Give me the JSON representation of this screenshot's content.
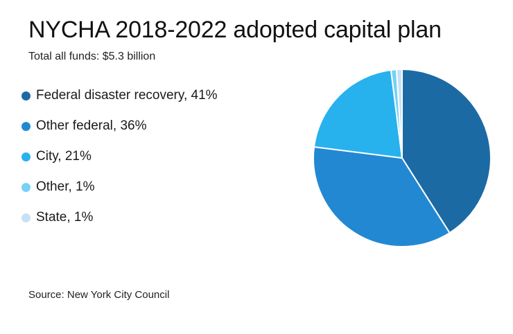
{
  "chart_data": {
    "type": "pie",
    "title": "NYCHA 2018-2022 adopted capital plan",
    "subtitle": "Total all funds: $5.3 billion",
    "source": "Source: New York City Council",
    "legend_position": "left",
    "slices": [
      {
        "name": "Federal disaster recovery",
        "label": "Federal disaster recovery, 41%",
        "value": 41,
        "color": "#1c6aa4"
      },
      {
        "name": "Other federal",
        "label": "Other federal, 36%",
        "value": 36,
        "color": "#2388d2"
      },
      {
        "name": "City",
        "label": "City, 21%",
        "value": 21,
        "color": "#27b2ee"
      },
      {
        "name": "Other",
        "label": "Other, 1%",
        "value": 1,
        "color": "#74d2f6"
      },
      {
        "name": "State",
        "label": "State, 1%",
        "value": 1,
        "color": "#c6e1f5"
      }
    ]
  }
}
